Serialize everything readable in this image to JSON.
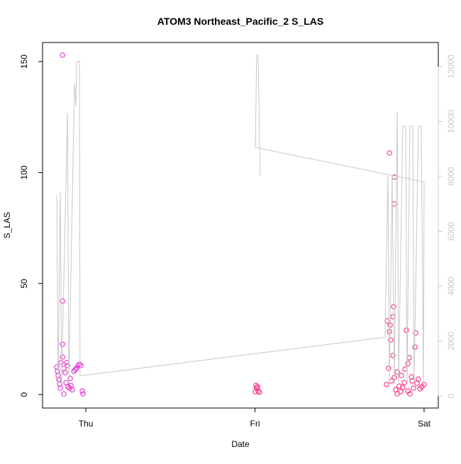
{
  "chart_data": {
    "type": "scatter",
    "title": "ATOM3 Northeast_Pacific_2 S_LAS",
    "x_label": "Date",
    "y_label": "S_LAS",
    "xlim": [
      -0.256,
      2.084
    ],
    "ylim": [
      -6.06,
      158.6
    ],
    "y2lim": [
      -439,
      12877
    ],
    "xticks": [
      {
        "value": 0,
        "label": "Thu"
      },
      {
        "value": 1,
        "label": "Fri"
      },
      {
        "value": 2,
        "label": "Sat"
      }
    ],
    "yticks": [
      0,
      50,
      100,
      150
    ],
    "y2ticks": [
      0,
      2000,
      4000,
      6000,
      8000,
      10000,
      12000
    ],
    "series": [
      {
        "color": "#e020c8",
        "x": [
          -0.138,
          -0.138,
          -0.138,
          -0.138,
          -0.172,
          -0.168,
          -0.164,
          -0.159,
          -0.155,
          -0.151,
          -0.147,
          -0.13,
          -0.122,
          -0.113,
          -0.109,
          -0.105,
          -0.096,
          -0.088,
          -0.08,
          -0.071,
          -0.063,
          -0.055,
          -0.046,
          -0.038,
          -0.029,
          -0.021,
          -0.017,
          -0.13,
          -0.117,
          -0.092
        ],
        "values": [
          152.9,
          42.1,
          22.7,
          16.9,
          12.4,
          10.5,
          8.6,
          6.7,
          4.8,
          2.9,
          14.4,
          11.8,
          9.9,
          14.4,
          13.1,
          3.5,
          2.9,
          4.1,
          2.2,
          10.5,
          11.2,
          11.8,
          13.1,
          13.7,
          13.1,
          1.6,
          0.3,
          0.3,
          5.4,
          7.3
        ]
      },
      {
        "color": "#ff1a7a",
        "x": [
          1.006,
          1.01,
          1.015,
          1.002,
          1.027,
          1.019,
          1.795,
          1.824,
          1.824,
          1.82,
          1.816,
          1.782,
          1.799,
          1.795,
          1.895,
          1.95,
          1.803,
          1.946,
          1.816,
          1.912,
          1.904,
          1.887,
          1.79,
          1.841,
          1.866,
          1.925,
          1.966,
          1.807,
          1.883,
          1.778,
          1.853,
          1.987,
          1.937,
          1.832,
          1.904,
          1.862,
          1.841,
          1.916,
          1.975,
          2.0,
          1.958,
          1.874,
          1.824,
          1.929
        ],
        "values": [
          4.1,
          2.9,
          3.5,
          1.3,
          1.0,
          1.6,
          108.8,
          98.0,
          85.9,
          39.6,
          35.1,
          33.2,
          31.3,
          28.4,
          29.0,
          27.8,
          24.6,
          21.4,
          17.6,
          16.6,
          14.0,
          11.5,
          11.8,
          10.2,
          8.6,
          8.0,
          7.0,
          6.1,
          5.4,
          4.5,
          3.8,
          3.5,
          2.9,
          2.2,
          1.6,
          1.3,
          0.3,
          0.3,
          2.6,
          4.5,
          5.1,
          3.2,
          7.7,
          6.1
        ]
      },
      {
        "axis": "y2",
        "line": true,
        "color": "#c8c8c8",
        "x": [
          -0.172,
          -0.164,
          -0.151,
          -0.143,
          -0.109,
          -0.101,
          -0.067,
          -0.059,
          -0.055,
          -0.038,
          -0.034,
          -0.017,
          1.769,
          1.786,
          1.795,
          1.811,
          1.824,
          1.841,
          1.849,
          1.874,
          1.891,
          1.899,
          1.916,
          1.933,
          1.941,
          1.966,
          1.983,
          1.996,
          2.0,
          1.002,
          1.01,
          1.019,
          1.031
        ],
        "values": [
          7329,
          490,
          7432,
          490,
          10297,
          490,
          11380,
          10555,
          12155,
          12206,
          748,
          748,
          2142,
          8026,
          490,
          8026,
          490,
          10348,
          490,
          9832,
          9832,
          490,
          9832,
          9832,
          490,
          9832,
          9832,
          490,
          7794,
          9058,
          12413,
          12413,
          8026
        ]
      }
    ]
  }
}
